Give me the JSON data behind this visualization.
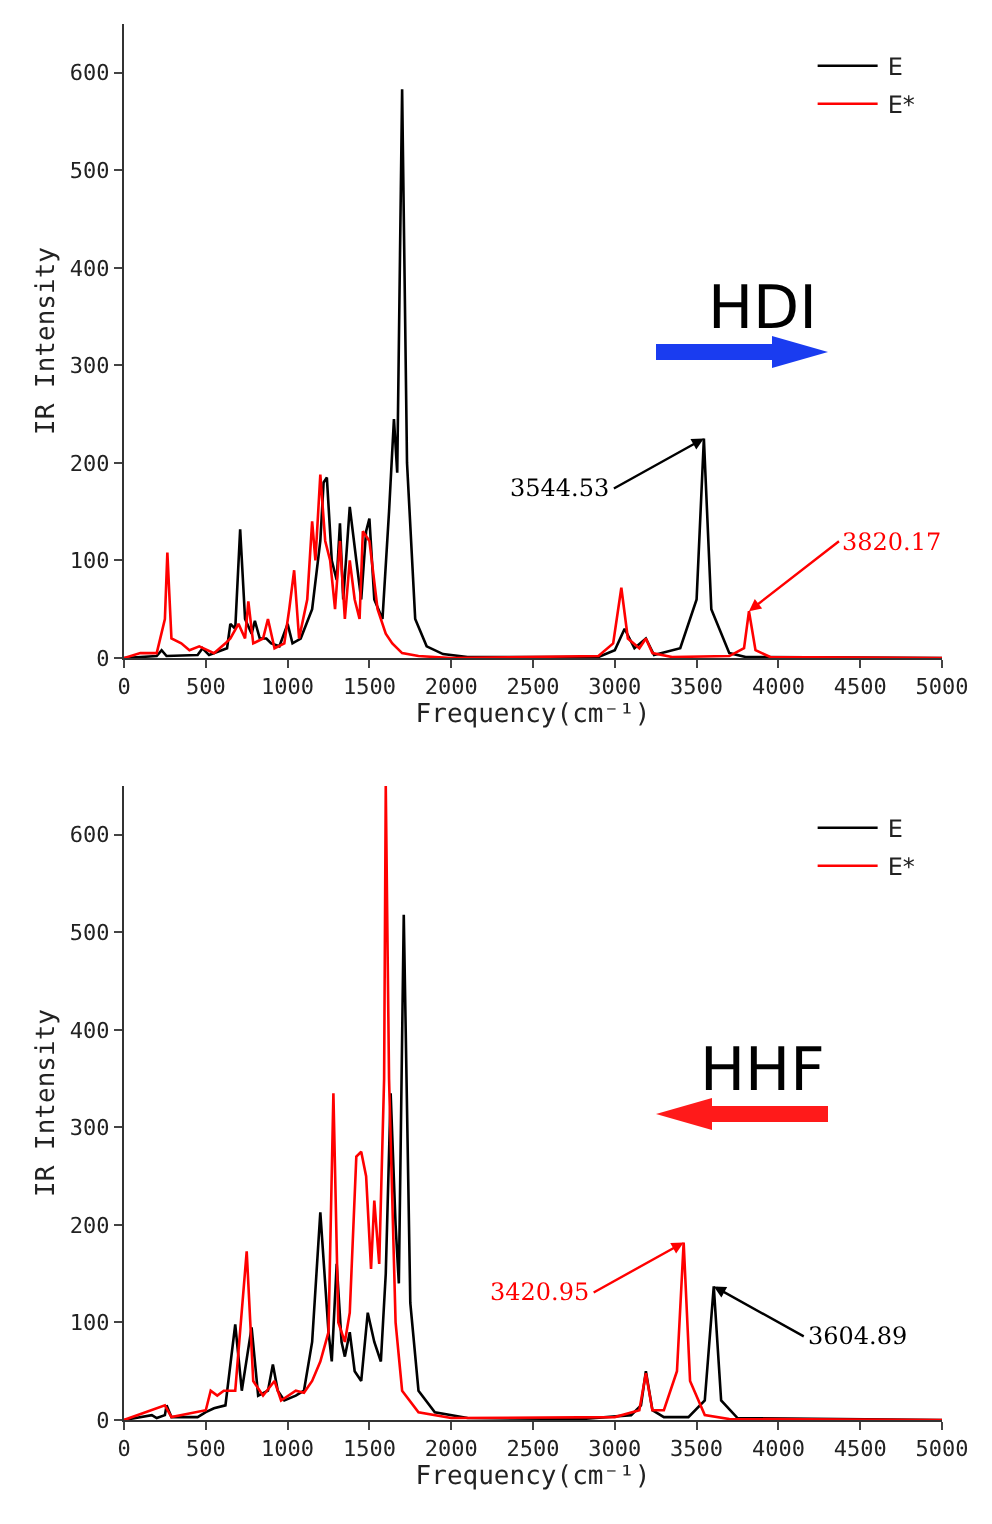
{
  "chart_data": [
    {
      "type": "line",
      "xlabel": "Frequency(cm⁻¹)",
      "ylabel": "IR Intensity",
      "xlim": [
        0,
        5000
      ],
      "ylim": [
        0,
        650
      ],
      "xticks": [
        0,
        500,
        1000,
        1500,
        2000,
        2500,
        3000,
        3500,
        4000,
        4500,
        5000
      ],
      "yticks": [
        0,
        100,
        200,
        300,
        400,
        500,
        600
      ],
      "grid": false,
      "legend": "top right",
      "marker": "none",
      "line_style": "solid",
      "annotations": [
        "HDI",
        {
          "text": "3544.53",
          "x": 3544.53,
          "y": 225
        },
        {
          "text": "3820.17",
          "x": 3820.17,
          "y": 48
        }
      ],
      "series": [
        {
          "name": "E",
          "color": "#000000",
          "x": [
            0,
            200,
            230,
            260,
            450,
            480,
            520,
            630,
            650,
            680,
            710,
            740,
            780,
            800,
            830,
            870,
            900,
            950,
            1000,
            1030,
            1080,
            1150,
            1200,
            1220,
            1240,
            1270,
            1300,
            1320,
            1340,
            1380,
            1420,
            1450,
            1480,
            1500,
            1530,
            1580,
            1620,
            1650,
            1670,
            1700,
            1730,
            1780,
            1850,
            1950,
            2100,
            2900,
            3000,
            3060,
            3120,
            3190,
            3240,
            3400,
            3500,
            3544.53,
            3590,
            3700,
            3800,
            5000
          ],
          "values": [
            0,
            2,
            8,
            2,
            3,
            10,
            3,
            10,
            35,
            30,
            132,
            40,
            25,
            38,
            20,
            20,
            15,
            12,
            35,
            15,
            20,
            50,
            120,
            180,
            185,
            100,
            80,
            138,
            60,
            155,
            100,
            60,
            130,
            143,
            60,
            40,
            150,
            245,
            190,
            583,
            200,
            40,
            12,
            4,
            1,
            1,
            8,
            30,
            10,
            20,
            3,
            10,
            60,
            225,
            50,
            5,
            1,
            0
          ]
        },
        {
          "name": "E*",
          "color": "#ff0000",
          "x": [
            0,
            100,
            200,
            250,
            265,
            290,
            350,
            400,
            460,
            550,
            620,
            650,
            700,
            740,
            760,
            790,
            850,
            880,
            920,
            980,
            1010,
            1040,
            1070,
            1120,
            1150,
            1170,
            1200,
            1230,
            1260,
            1290,
            1320,
            1350,
            1380,
            1410,
            1440,
            1460,
            1500,
            1550,
            1600,
            1640,
            1700,
            1800,
            2000,
            2900,
            2990,
            3040,
            3080,
            3150,
            3190,
            3230,
            3350,
            3700,
            3790,
            3820.17,
            3860,
            3950,
            5000
          ],
          "values": [
            0,
            5,
            5,
            40,
            108,
            20,
            15,
            8,
            12,
            5,
            15,
            20,
            35,
            20,
            58,
            15,
            20,
            40,
            10,
            15,
            50,
            90,
            20,
            60,
            140,
            100,
            188,
            120,
            100,
            50,
            120,
            40,
            100,
            60,
            40,
            130,
            120,
            50,
            25,
            15,
            5,
            2,
            0,
            2,
            15,
            72,
            20,
            10,
            20,
            5,
            1,
            2,
            10,
            48,
            8,
            1,
            0
          ]
        }
      ]
    },
    {
      "type": "line",
      "xlabel": "Frequency(cm⁻¹)",
      "ylabel": "IR Intensity",
      "xlim": [
        0,
        5000
      ],
      "ylim": [
        0,
        650
      ],
      "xticks": [
        0,
        500,
        1000,
        1500,
        2000,
        2500,
        3000,
        3500,
        4000,
        4500,
        5000
      ],
      "yticks": [
        0,
        100,
        200,
        300,
        400,
        500,
        600
      ],
      "grid": false,
      "legend": "top right",
      "marker": "none",
      "line_style": "solid",
      "annotations": [
        "HHF",
        {
          "text": "3420.95",
          "x": 3420.95,
          "y": 182
        },
        {
          "text": "3604.89",
          "x": 3604.89,
          "y": 137
        }
      ],
      "series": [
        {
          "name": "E",
          "color": "#000000",
          "x": [
            0,
            170,
            200,
            250,
            260,
            290,
            450,
            500,
            550,
            620,
            680,
            720,
            780,
            820,
            880,
            910,
            940,
            980,
            1050,
            1100,
            1150,
            1200,
            1250,
            1270,
            1300,
            1330,
            1350,
            1380,
            1410,
            1450,
            1490,
            1530,
            1570,
            1600,
            1630,
            1660,
            1680,
            1710,
            1750,
            1800,
            1900,
            2100,
            2800,
            3100,
            3160,
            3190,
            3230,
            3300,
            3450,
            3550,
            3604.89,
            3650,
            3750,
            5000
          ],
          "values": [
            0,
            5,
            2,
            5,
            15,
            3,
            3,
            8,
            12,
            15,
            98,
            30,
            95,
            25,
            30,
            57,
            30,
            20,
            25,
            30,
            80,
            213,
            90,
            60,
            160,
            80,
            65,
            90,
            50,
            40,
            110,
            80,
            60,
            150,
            335,
            200,
            140,
            518,
            120,
            30,
            8,
            2,
            1,
            5,
            15,
            50,
            10,
            3,
            3,
            20,
            137,
            20,
            2,
            0
          ]
        },
        {
          "name": "E*",
          "color": "#ff0000",
          "x": [
            0,
            250,
            290,
            500,
            530,
            570,
            610,
            680,
            750,
            790,
            850,
            920,
            960,
            1050,
            1100,
            1150,
            1200,
            1250,
            1280,
            1310,
            1350,
            1380,
            1420,
            1450,
            1480,
            1510,
            1530,
            1560,
            1590,
            1600,
            1620,
            1660,
            1700,
            1800,
            2000,
            3000,
            3150,
            3190,
            3230,
            3300,
            3380,
            3420.95,
            3460,
            3550,
            3700,
            5000
          ],
          "values": [
            0,
            15,
            3,
            10,
            30,
            25,
            30,
            30,
            173,
            40,
            25,
            40,
            20,
            30,
            28,
            40,
            60,
            90,
            335,
            100,
            80,
            110,
            270,
            275,
            250,
            155,
            225,
            160,
            350,
            650,
            350,
            100,
            30,
            8,
            2,
            3,
            10,
            48,
            10,
            10,
            50,
            182,
            40,
            5,
            1,
            0
          ]
        }
      ]
    }
  ]
}
